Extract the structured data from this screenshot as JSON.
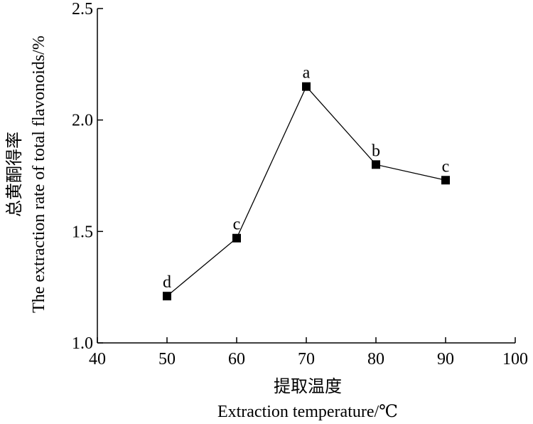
{
  "chart_data": {
    "type": "line",
    "x": [
      50,
      60,
      70,
      80,
      90
    ],
    "series": [
      {
        "values": [
          1.21,
          1.47,
          2.15,
          1.8,
          1.73
        ],
        "point_labels": [
          "d",
          "c",
          "a",
          "b",
          "c"
        ],
        "color": "#000000",
        "marker": "square"
      }
    ],
    "xlabel_cn": "提取温度",
    "xlabel_en": "Extraction temperature/℃",
    "ylabel_cn": "总黄酮得率",
    "ylabel_en": "The extraction rate of total flavonoids/%",
    "xlim": [
      40,
      100
    ],
    "ylim": [
      1.0,
      2.5
    ],
    "xticks": [
      40,
      50,
      60,
      70,
      80,
      90,
      100
    ],
    "yticks": [
      1.0,
      1.5,
      2.0,
      2.5
    ],
    "xtick_labels": [
      "40",
      "50",
      "60",
      "70",
      "80",
      "90",
      "100"
    ],
    "ytick_labels": [
      "1.0",
      "1.5",
      "2.0",
      "2.5"
    ],
    "grid": false,
    "legend": "none"
  }
}
